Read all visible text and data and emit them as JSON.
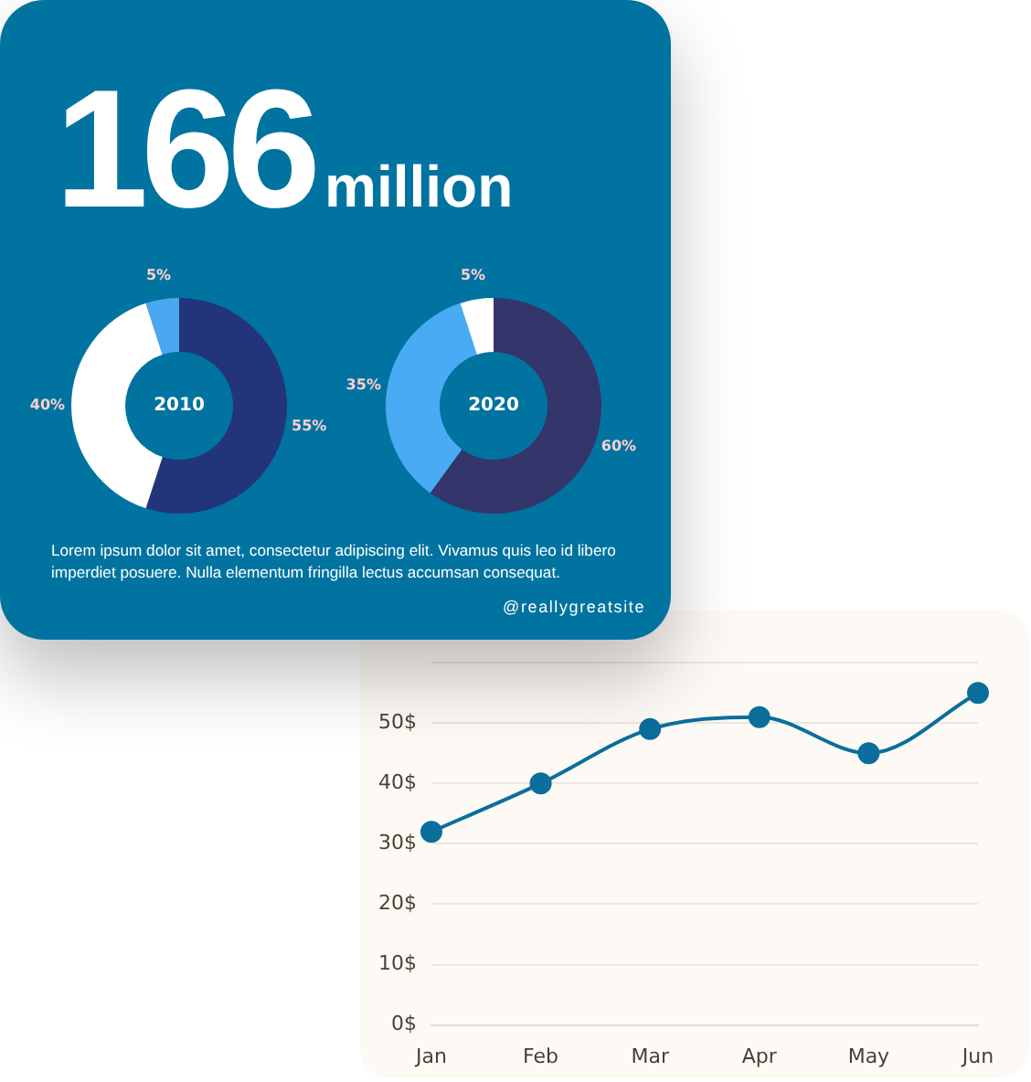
{
  "chart_data": [
    {
      "type": "other",
      "title": "166",
      "subtitle": "million",
      "annotations": [
        "Lorem ipsum dolor sit amet, consectetur adipiscing elit. Vivamus quis leo id libero imperdiet posuere. Nulla elementum fringilla lectus accumsan consequat.",
        "@reallygreatsite"
      ]
    },
    {
      "type": "donut",
      "title": "2010",
      "categories": [
        null,
        null,
        null
      ],
      "values": [
        55,
        40,
        5
      ],
      "colors": [
        "#23357a",
        "#ffffff",
        "#4aa8f0"
      ],
      "value_labels": [
        "55%",
        "40%",
        "5%"
      ]
    },
    {
      "type": "donut",
      "title": "2020",
      "categories": [
        null,
        null,
        null
      ],
      "values": [
        60,
        35,
        5
      ],
      "colors": [
        "#33356b",
        "#4aabf5",
        "#ffffff"
      ],
      "value_labels": [
        "60%",
        "35%",
        "5%"
      ]
    },
    {
      "type": "line",
      "categories": [
        "Jan",
        "Feb",
        "Mar",
        "Apr",
        "May",
        "Jun"
      ],
      "values": [
        32,
        40,
        49,
        51,
        45,
        55
      ],
      "color": "#0b6e9c",
      "ylim": [
        0,
        60
      ],
      "yticks": [
        {
          "value": 0,
          "label": "0$"
        },
        {
          "value": 10,
          "label": "10$"
        },
        {
          "value": 20,
          "label": "20$"
        },
        {
          "value": 30,
          "label": "30$"
        },
        {
          "value": 40,
          "label": "40$"
        },
        {
          "value": 50,
          "label": "50$"
        },
        {
          "value": 60,
          "label": null
        }
      ],
      "grid": "y",
      "marker": "circle",
      "line_style": "solid"
    }
  ]
}
